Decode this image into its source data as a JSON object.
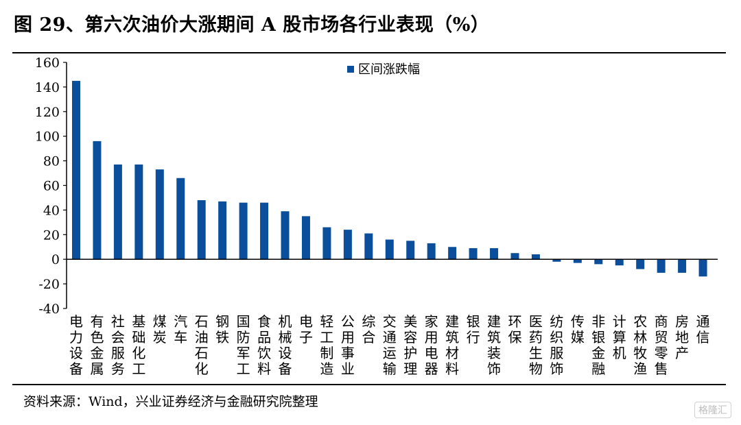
{
  "title": "图 29、第六次油价大涨期间 A 股市场各行业表现（%）",
  "source": "资料来源：Wind，兴业证券经济与金融研究院整理",
  "watermark": "格隆汇",
  "chart_data": {
    "type": "bar",
    "categories": [
      "电力设备",
      "有色金属",
      "社会服务",
      "基础化工",
      "煤炭",
      "汽车",
      "石油石化",
      "钢铁",
      "国防军工",
      "食品饮料",
      "机械设备",
      "电子",
      "轻工制造",
      "公用事业",
      "综合",
      "交通运输",
      "美容护理",
      "家用电器",
      "建筑材料",
      "银行",
      "建筑装饰",
      "环保",
      "医药生物",
      "纺织服饰",
      "传媒",
      "非银金融",
      "计算机",
      "农林牧渔",
      "商贸零售",
      "房地产",
      "通信"
    ],
    "series": [
      {
        "name": "区间涨跌幅",
        "color": "#0b4f9c",
        "values": [
          145,
          96,
          77,
          77,
          73,
          66,
          48,
          47,
          46,
          46,
          39,
          35,
          26,
          24,
          21,
          16,
          15,
          13,
          10,
          9,
          9,
          5,
          4,
          -2,
          -3,
          -4,
          -5,
          -8,
          -11,
          -11,
          -14
        ]
      }
    ],
    "ylim": [
      -40,
      160
    ],
    "yticks": [
      -40,
      -20,
      0,
      20,
      40,
      60,
      80,
      100,
      120,
      140,
      160
    ],
    "legend_position": "top-center",
    "grid": false
  }
}
